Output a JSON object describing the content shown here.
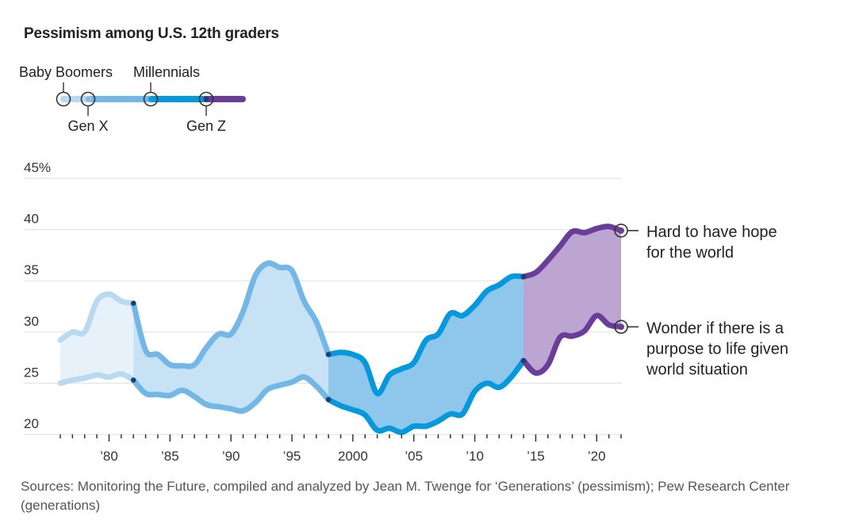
{
  "title": "Pessimism among U.S. 12th graders",
  "source": "Sources: Monitoring the Future, compiled and analyzed by Jean M. Twenge for ‘Generations’ (pessimism); Pew Research Center (generations)",
  "legend": {
    "generations": [
      {
        "name": "Baby Boomers",
        "color": "#c5dff3"
      },
      {
        "name": "Gen X",
        "color": "#7bbde8"
      },
      {
        "name": "Millennials",
        "color": "#0a9ce2"
      },
      {
        "name": "Gen Z",
        "color": "#6b3d9a"
      }
    ]
  },
  "colors": {
    "boomers_line": "#b9d9f1",
    "boomers_fill": "#e7f1fa",
    "genx_line": "#72b7e6",
    "genx_fill": "#c7e2f5",
    "mill_line": "#0598dc",
    "mill_fill": "#8fc6ec",
    "genz_line": "#6b3d9a",
    "genz_fill": "#bca6d1",
    "grid": "#e4e4e4"
  },
  "chart_data": {
    "type": "area",
    "title": "Pessimism among U.S. 12th graders",
    "xlabel": "",
    "ylabel": "",
    "ylim": [
      20,
      45
    ],
    "xlim": [
      1976,
      2022
    ],
    "yticks": [
      {
        "value": 45,
        "label": "45%"
      },
      {
        "value": 40,
        "label": "40"
      },
      {
        "value": 35,
        "label": "35"
      },
      {
        "value": 30,
        "label": "30"
      },
      {
        "value": 25,
        "label": "25"
      },
      {
        "value": 20,
        "label": "20"
      }
    ],
    "xticks": [
      {
        "value": 1980,
        "label": "’80"
      },
      {
        "value": 1985,
        "label": "’85"
      },
      {
        "value": 1990,
        "label": "’90"
      },
      {
        "value": 1995,
        "label": "’95"
      },
      {
        "value": 2000,
        "label": "2000"
      },
      {
        "value": 2005,
        "label": "’05"
      },
      {
        "value": 2010,
        "label": "’10"
      },
      {
        "value": 2015,
        "label": "’15"
      },
      {
        "value": 2020,
        "label": "’20"
      }
    ],
    "generation_boundaries": [
      {
        "name": "Baby Boomers",
        "start": 1976,
        "end": 1982
      },
      {
        "name": "Gen X",
        "start": 1982,
        "end": 1998
      },
      {
        "name": "Millennials",
        "start": 1998,
        "end": 2014
      },
      {
        "name": "Gen Z",
        "start": 2014,
        "end": 2022
      }
    ],
    "series": [
      {
        "name": "Hard to have hope for the world",
        "x": [
          1976,
          1977,
          1978,
          1979,
          1980,
          1981,
          1982,
          1983,
          1984,
          1985,
          1986,
          1987,
          1988,
          1989,
          1990,
          1991,
          1992,
          1993,
          1994,
          1995,
          1996,
          1997,
          1998,
          1999,
          2000,
          2001,
          2002,
          2003,
          2004,
          2005,
          2006,
          2007,
          2008,
          2009,
          2010,
          2011,
          2012,
          2013,
          2014,
          2015,
          2016,
          2017,
          2018,
          2019,
          2020,
          2021,
          2022
        ],
        "values": [
          29.2,
          30.0,
          30.0,
          33.0,
          33.7,
          33.0,
          32.8,
          28.2,
          27.8,
          26.8,
          26.7,
          26.8,
          28.5,
          29.8,
          29.8,
          32.0,
          35.5,
          36.7,
          36.3,
          36.0,
          33.0,
          31.0,
          27.8,
          28.0,
          27.8,
          27.0,
          24.0,
          25.8,
          26.4,
          27.0,
          29.2,
          29.8,
          31.8,
          31.6,
          32.6,
          34.0,
          34.6,
          35.4,
          35.4,
          35.8,
          37.0,
          38.4,
          39.8,
          39.7,
          40.1,
          40.3,
          39.9
        ]
      },
      {
        "name": "Wonder if there is a purpose to life given world situation",
        "x": [
          1976,
          1977,
          1978,
          1979,
          1980,
          1981,
          1982,
          1983,
          1984,
          1985,
          1986,
          1987,
          1988,
          1989,
          1990,
          1991,
          1992,
          1993,
          1994,
          1995,
          1996,
          1997,
          1998,
          1999,
          2000,
          2001,
          2002,
          2003,
          2004,
          2005,
          2006,
          2007,
          2008,
          2009,
          2010,
          2011,
          2012,
          2013,
          2014,
          2015,
          2016,
          2017,
          2018,
          2019,
          2020,
          2021,
          2022
        ],
        "values": [
          25.0,
          25.3,
          25.5,
          25.8,
          25.6,
          25.9,
          25.3,
          24.0,
          23.9,
          23.8,
          24.3,
          23.7,
          22.9,
          22.7,
          22.5,
          22.3,
          23.1,
          24.4,
          24.8,
          25.1,
          25.6,
          24.7,
          23.4,
          22.8,
          22.4,
          21.9,
          20.4,
          20.6,
          20.2,
          20.8,
          20.8,
          21.3,
          22.0,
          22.0,
          24.2,
          25.0,
          24.6,
          25.6,
          27.2,
          26.0,
          26.8,
          29.5,
          29.6,
          30.1,
          31.6,
          30.7,
          30.5
        ]
      }
    ],
    "annotations": [
      {
        "series": 0,
        "lines": [
          "Hard to have hope",
          "for the world"
        ]
      },
      {
        "series": 1,
        "lines": [
          "Wonder if there is a",
          "purpose to life given",
          "world situation"
        ]
      }
    ]
  }
}
